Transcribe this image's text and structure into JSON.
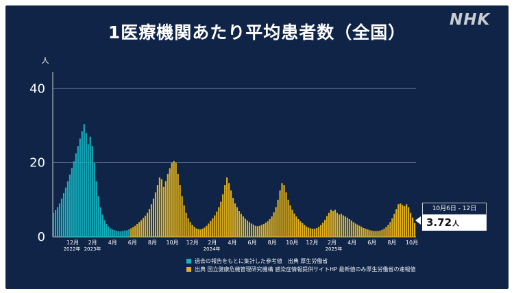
{
  "header": {
    "title": "1医療機関あたり平均患者数（全国）",
    "logo": "NHK"
  },
  "legend": [
    {
      "color": "#13b3c0",
      "label": "過去の報告をもとに集計した参考値　出典 厚生労働省"
    },
    {
      "color": "#e3b21a",
      "label": "出典 国立健康危機管理研究機構 感染症情報提供サイトHP 最新値のみ厚生労働省の速報値"
    }
  ],
  "callout": {
    "date": "10月6日 - 12日",
    "value": "3.72",
    "unit": "人"
  },
  "chart_data": {
    "type": "bar",
    "ylabel": "人",
    "ylim": [
      0,
      43
    ],
    "yticks": [
      0,
      20,
      40
    ],
    "grid": true,
    "x_tick_labels": [
      "12月",
      "2月",
      "4月",
      "6月",
      "8月",
      "10月",
      "12月",
      "2月",
      "4月",
      "6月",
      "8月",
      "10月",
      "12月",
      "2月",
      "4月",
      "6月",
      "8月",
      "10月"
    ],
    "x_year_labels": [
      "2022年",
      "2023年",
      "2024年",
      "2025年"
    ],
    "series": [
      {
        "name": "過去の報告をもとに集計した参考値",
        "color": "#13b3c0",
        "values": [
          6.5,
          7.2,
          8.0,
          9.0,
          10.3,
          11.8,
          13.3,
          15.0,
          16.8,
          18.6,
          20.4,
          22.5,
          24.5,
          26.5,
          28.5,
          30.4,
          28.0,
          25.0,
          27.0,
          24.5,
          20.0,
          15.0,
          11.0,
          8.0,
          6.0,
          4.5,
          3.5,
          2.8,
          2.3,
          2.0,
          1.8,
          1.6,
          1.5,
          1.5,
          1.6,
          1.7,
          1.8,
          2.0
        ]
      },
      {
        "name": "国立健康危機管理研究機構 感染症情報提供サイトHP",
        "color": "#e3b21a",
        "values": [
          2.3,
          2.6,
          3.0,
          3.5,
          4.0,
          4.5,
          5.1,
          5.7,
          6.5,
          7.5,
          8.8,
          10.3,
          12.0,
          14.0,
          16.0,
          15.5,
          13.5,
          15.0,
          17.0,
          18.5,
          20.0,
          20.5,
          20.0,
          17.0,
          14.0,
          11.0,
          8.5,
          6.5,
          5.0,
          4.0,
          3.2,
          2.7,
          2.3,
          2.1,
          2.0,
          2.2,
          2.5,
          3.0,
          3.6,
          4.3,
          5.0,
          5.8,
          6.8,
          8.0,
          9.5,
          11.5,
          14.0,
          16.0,
          14.5,
          12.5,
          10.5,
          9.0,
          8.0,
          7.0,
          6.2,
          5.5,
          4.9,
          4.4,
          4.0,
          3.6,
          3.3,
          3.0,
          2.9,
          3.0,
          3.2,
          3.5,
          3.8,
          4.2,
          4.8,
          5.5,
          6.6,
          8.0,
          10.0,
          12.5,
          14.5,
          14.0,
          12.0,
          10.0,
          8.5,
          7.3,
          6.3,
          5.5,
          4.8,
          4.2,
          3.7,
          3.2,
          2.8,
          2.5,
          2.3,
          2.2,
          2.2,
          2.4,
          2.7,
          3.2,
          3.8,
          4.6,
          5.6,
          6.5,
          7.3,
          7.0,
          7.3,
          6.5,
          6.0,
          6.2,
          5.8,
          5.5,
          5.2,
          4.8,
          4.4,
          4.0,
          3.6,
          3.3,
          3.0,
          2.7,
          2.4,
          2.2,
          2.0,
          1.8,
          1.7,
          1.6,
          1.6,
          1.6,
          1.7,
          1.9,
          2.2,
          2.6,
          3.2,
          4.0,
          5.0,
          6.2,
          7.5,
          8.8,
          9.0,
          8.6,
          8.3,
          8.8,
          8.0,
          6.5,
          5.2,
          3.72
        ]
      }
    ]
  }
}
